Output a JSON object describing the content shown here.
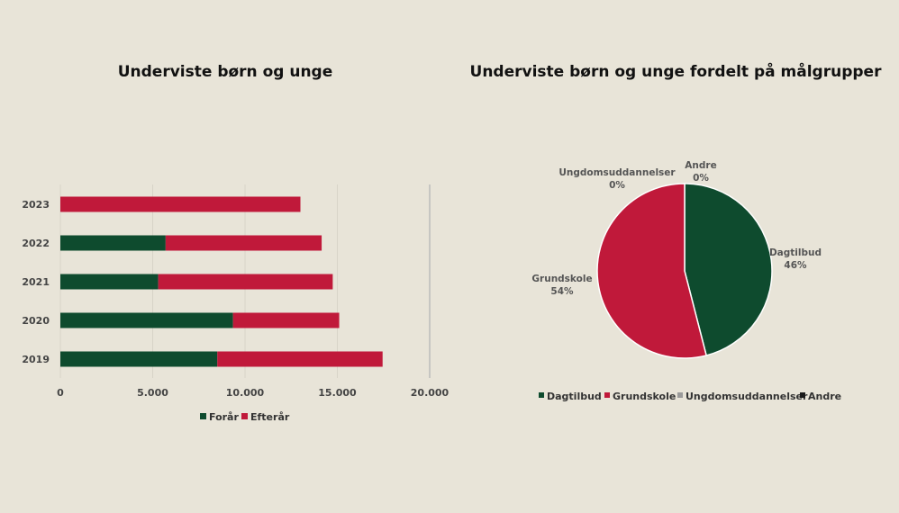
{
  "colors": {
    "foraar": "#0e4b2e",
    "efteraar": "#c0193a",
    "ungdom": "#9a9a9a",
    "andre": "#1a1a1a"
  },
  "chart_data": [
    {
      "type": "bar",
      "orientation": "horizontal",
      "stacked": true,
      "title": "Underviste børn og unge",
      "categories": [
        "2023",
        "2022",
        "2021",
        "2020",
        "2019"
      ],
      "series": [
        {
          "name": "Forår",
          "values": [
            0,
            5700,
            5300,
            9350,
            8500
          ]
        },
        {
          "name": "Efterår",
          "values": [
            13000,
            8450,
            9450,
            5750,
            8950
          ]
        }
      ],
      "xlim": [
        0,
        20000
      ],
      "xticks": [
        "0",
        "5.000",
        "10.000",
        "15.000",
        "20.000"
      ],
      "legend_position": "bottom",
      "grid": true
    },
    {
      "type": "pie",
      "title": "Underviste børn og unge fordelt på målgrupper",
      "slices": [
        {
          "name": "Dagtilbud",
          "value": 46,
          "label": "46%"
        },
        {
          "name": "Grundskole",
          "value": 54,
          "label": "54%"
        },
        {
          "name": "Ungdomsuddannelser",
          "value": 0,
          "label": "0%"
        },
        {
          "name": "Andre",
          "value": 0,
          "label": "0%"
        }
      ],
      "legend_position": "bottom"
    }
  ]
}
